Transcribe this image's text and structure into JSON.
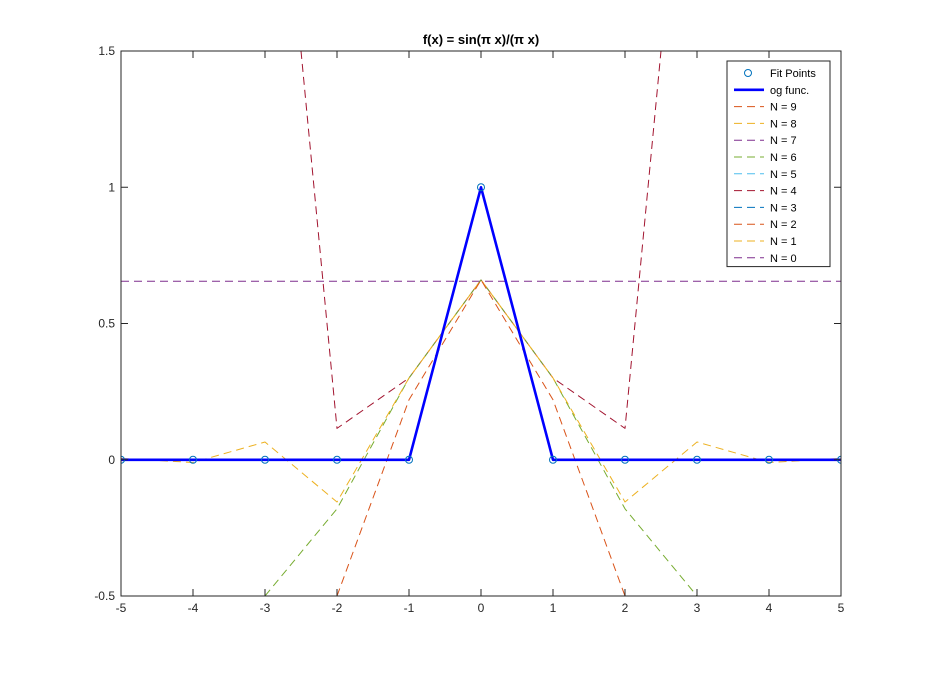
{
  "chart_data": {
    "type": "line",
    "title": "f(x) = sin(π x)/(π x)",
    "xlabel": "",
    "ylabel": "",
    "xlim": [
      -5,
      5
    ],
    "ylim": [
      -0.5,
      1.5
    ],
    "xticks": [
      -5,
      -4,
      -3,
      -2,
      -1,
      0,
      1,
      2,
      3,
      4,
      5
    ],
    "yticks": [
      -0.5,
      0,
      0.5,
      1,
      1.5
    ],
    "xtick_labels": [
      "-5",
      "-4",
      "-3",
      "-2",
      "-1",
      "0",
      "1",
      "2",
      "3",
      "4",
      "5"
    ],
    "ytick_labels": [
      "-0.5",
      "0",
      "0.5",
      "1",
      "1.5"
    ],
    "grid": false,
    "legend_position": "top-right",
    "x": [
      -5,
      -4,
      -3,
      -2,
      -1,
      0,
      1,
      2,
      3,
      4,
      5
    ],
    "series": [
      {
        "name": "Fit Points",
        "style": "markers",
        "color": "#0072BD",
        "values": [
          0,
          0,
          0,
          0,
          0,
          1,
          0,
          0,
          0,
          0,
          0
        ]
      },
      {
        "name": "og func.",
        "style": "solid",
        "color": "#0000FF",
        "values": [
          0,
          0,
          0,
          0,
          0,
          1,
          0,
          0,
          0,
          0,
          0
        ]
      },
      {
        "name": "N = 9",
        "style": "dashed",
        "color": "#D95319",
        "values": [
          null,
          null,
          null,
          -0.5,
          0.22,
          0.66,
          0.22,
          -0.5,
          null,
          null,
          null
        ]
      },
      {
        "name": "N = 8",
        "style": "dashed",
        "color": "#EDB120",
        "values": [
          0.005,
          -0.01,
          0.065,
          -0.155,
          0.3,
          0.66,
          0.3,
          -0.155,
          0.065,
          -0.01,
          0.005
        ]
      },
      {
        "name": "N = 7",
        "style": "dashed",
        "color": "#7E2F8E",
        "values": [
          null,
          null,
          null,
          null,
          null,
          null,
          null,
          null,
          null,
          null,
          null
        ]
      },
      {
        "name": "N = 6",
        "style": "dashed",
        "color": "#77AC30",
        "values": [
          null,
          null,
          -0.5,
          -0.18,
          0.3,
          0.66,
          0.3,
          -0.18,
          -0.5,
          null,
          null
        ]
      },
      {
        "name": "N = 5",
        "style": "dashed",
        "color": "#4DBEEE",
        "values": [
          null,
          null,
          null,
          null,
          null,
          null,
          null,
          null,
          null,
          null,
          null
        ]
      },
      {
        "name": "N = 4",
        "style": "dashed",
        "color": "#A2142F",
        "values": [
          null,
          null,
          null,
          0.115,
          0.3,
          0.66,
          0.3,
          0.115,
          null,
          null,
          null
        ],
        "extra_points": [
          [
            -2.5,
            1.5
          ],
          [
            2.5,
            1.5
          ]
        ]
      },
      {
        "name": "N = 3",
        "style": "dashed",
        "color": "#0072BD",
        "values": [
          null,
          null,
          null,
          null,
          null,
          null,
          null,
          null,
          null,
          null,
          null
        ]
      },
      {
        "name": "N = 2",
        "style": "dashed",
        "color": "#D95319",
        "values": [
          null,
          null,
          null,
          null,
          null,
          null,
          null,
          null,
          null,
          null,
          null
        ]
      },
      {
        "name": "N = 1",
        "style": "dashed",
        "color": "#EDB120",
        "values": [
          null,
          null,
          null,
          null,
          null,
          null,
          null,
          null,
          null,
          null,
          null
        ]
      },
      {
        "name": "N = 0",
        "style": "dashed",
        "color": "#7E2F8E",
        "values": [
          0.655,
          0.655,
          0.655,
          0.655,
          0.655,
          0.655,
          0.655,
          0.655,
          0.655,
          0.655,
          0.655
        ]
      }
    ]
  }
}
